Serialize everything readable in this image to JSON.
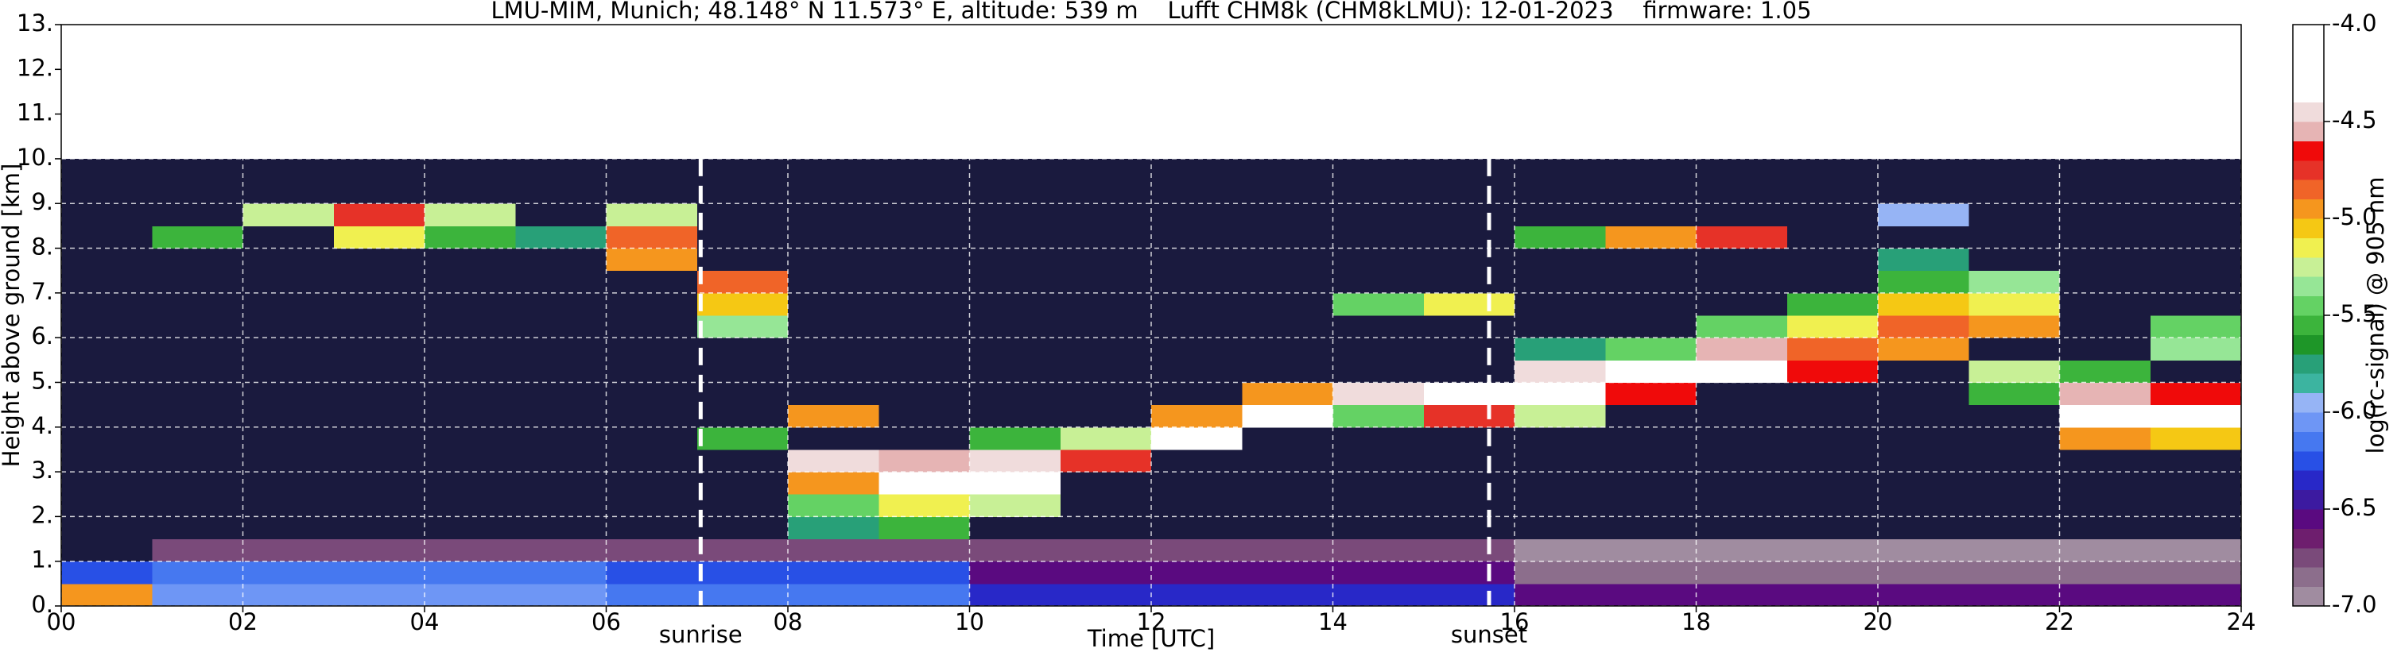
{
  "chart_data": {
    "type": "heatmap",
    "title": "LMU-MIM, Munich; 48.148° N 11.573° E, altitude: 539 m    Lufft CHM8k (CHM8kLMU): 12-01-2023    firmware: 1.05",
    "xlabel": "Time [UTC]",
    "ylabel": "Height above ground [km]",
    "xlim": [
      0,
      24
    ],
    "ylim": [
      0,
      13
    ],
    "xticks": [
      {
        "value": 0,
        "label": "00"
      },
      {
        "value": 2,
        "label": "02"
      },
      {
        "value": 4,
        "label": "04"
      },
      {
        "value": 6,
        "label": "06"
      },
      {
        "value": 8,
        "label": "08"
      },
      {
        "value": 10,
        "label": "10"
      },
      {
        "value": 12,
        "label": "12"
      },
      {
        "value": 14,
        "label": "14"
      },
      {
        "value": 16,
        "label": "16"
      },
      {
        "value": 18,
        "label": "18"
      },
      {
        "value": 20,
        "label": "20"
      },
      {
        "value": 22,
        "label": "22"
      },
      {
        "value": 24,
        "label": "24"
      }
    ],
    "yticks": [
      {
        "value": 0,
        "label": "0."
      },
      {
        "value": 1,
        "label": "1."
      },
      {
        "value": 2,
        "label": "2."
      },
      {
        "value": 3,
        "label": "3."
      },
      {
        "value": 4,
        "label": "4."
      },
      {
        "value": 5,
        "label": "5."
      },
      {
        "value": 6,
        "label": "6."
      },
      {
        "value": 7,
        "label": "7."
      },
      {
        "value": 8,
        "label": "8."
      },
      {
        "value": 9,
        "label": "9."
      },
      {
        "value": 10,
        "label": "10."
      },
      {
        "value": 11,
        "label": "11."
      },
      {
        "value": 12,
        "label": "12."
      },
      {
        "value": 13,
        "label": "13."
      }
    ],
    "grid": true,
    "grid_color": "#ffffff",
    "xbins": [
      0,
      1,
      2,
      3,
      4,
      5,
      6,
      7,
      8,
      9,
      10,
      11,
      12,
      13,
      14,
      15,
      16,
      17,
      18,
      19,
      20,
      21,
      22,
      23,
      24
    ],
    "ybins": [
      0,
      0.5,
      1,
      1.5,
      2,
      2.5,
      3,
      3.5,
      4,
      4.5,
      5,
      5.5,
      6,
      6.5,
      7,
      7.5,
      8,
      8.5,
      9,
      9.5,
      10
    ],
    "values": [
      [
        -5.0,
        -6.1,
        -6.1,
        -6.1,
        -6.1,
        -6.1,
        -6.2,
        -6.2,
        -6.2,
        -6.2,
        -6.4,
        -6.4,
        -6.4,
        -6.4,
        -6.4,
        -6.4,
        -6.6,
        -6.6,
        -6.6,
        -6.6,
        -6.6,
        -6.6,
        -6.6,
        -6.6
      ],
      [
        -6.3,
        -6.2,
        -6.2,
        -6.2,
        -6.2,
        -6.2,
        -6.3,
        -6.3,
        -6.3,
        -6.3,
        -6.6,
        -6.6,
        -6.6,
        -6.6,
        -6.6,
        -6.6,
        -6.9,
        -6.9,
        -6.9,
        -6.9,
        -6.9,
        -6.9,
        -6.9,
        -6.9
      ],
      [
        -7.2,
        -6.8,
        -6.8,
        -6.8,
        -6.8,
        -6.8,
        -6.8,
        -6.8,
        -6.8,
        -6.8,
        -6.8,
        -6.8,
        -6.8,
        -6.8,
        -6.8,
        -6.8,
        -7.0,
        -7.0,
        -7.0,
        -7.0,
        -7.0,
        -7.0,
        -7.0,
        -7.0
      ],
      [
        -7.2,
        -7.2,
        -7.2,
        -7.2,
        -7.2,
        -7.2,
        -7.2,
        -7.2,
        -5.8,
        -5.6,
        -7.2,
        -7.2,
        -7.2,
        -7.2,
        -7.2,
        -7.2,
        -7.2,
        -7.2,
        -7.2,
        -7.2,
        -7.2,
        -7.2,
        -7.2,
        -7.2
      ],
      [
        -7.2,
        -7.2,
        -7.2,
        -7.2,
        -7.2,
        -7.2,
        -7.2,
        -7.2,
        -5.5,
        -5.2,
        -5.3,
        -7.2,
        -7.2,
        -7.2,
        -7.2,
        -7.2,
        -7.2,
        -7.2,
        -7.2,
        -7.2,
        -7.2,
        -7.2,
        -7.2,
        -7.2
      ],
      [
        -7.2,
        -7.2,
        -7.2,
        -7.2,
        -7.2,
        -7.2,
        -7.2,
        -7.2,
        -5.0,
        -4.3,
        -4.4,
        -7.2,
        -7.2,
        -7.2,
        -7.2,
        -7.2,
        -7.2,
        -7.2,
        -7.2,
        -7.2,
        -7.2,
        -7.2,
        -7.2,
        -7.2
      ],
      [
        -7.2,
        -7.2,
        -7.2,
        -7.2,
        -7.2,
        -7.2,
        -7.2,
        -7.2,
        -4.5,
        -4.6,
        -4.5,
        -4.8,
        -7.2,
        -7.2,
        -7.2,
        -7.2,
        -7.2,
        -7.2,
        -7.2,
        -7.2,
        -7.2,
        -7.2,
        -7.2,
        -7.2
      ],
      [
        -7.2,
        -7.2,
        -7.2,
        -7.2,
        -7.2,
        -7.2,
        -7.2,
        -5.6,
        -7.2,
        -7.2,
        -5.6,
        -5.3,
        -4.4,
        -7.2,
        -7.2,
        -7.2,
        -7.2,
        -7.2,
        -7.2,
        -7.2,
        -7.2,
        -7.2,
        -5.0,
        -5.1
      ],
      [
        -7.2,
        -7.2,
        -7.2,
        -7.2,
        -7.2,
        -7.2,
        -7.2,
        -7.2,
        -5.0,
        -7.2,
        -7.2,
        -7.2,
        -5.0,
        -4.3,
        -5.5,
        -4.8,
        -5.3,
        -7.2,
        -7.2,
        -7.2,
        -7.2,
        -7.2,
        -4.2,
        -4.3
      ],
      [
        -7.2,
        -7.2,
        -7.2,
        -7.2,
        -7.2,
        -7.2,
        -7.2,
        -7.2,
        -7.2,
        -7.2,
        -7.2,
        -7.2,
        -7.2,
        -5.0,
        -4.5,
        -4.4,
        -4.2,
        -4.7,
        -7.2,
        -7.2,
        -7.2,
        -5.6,
        -4.6,
        -4.7
      ],
      [
        -7.2,
        -7.2,
        -7.2,
        -7.2,
        -7.2,
        -7.2,
        -7.2,
        -7.2,
        -7.2,
        -7.2,
        -7.2,
        -7.2,
        -7.2,
        -7.2,
        -7.2,
        -7.2,
        -4.5,
        -4.3,
        -4.4,
        -4.7,
        -7.2,
        -5.3,
        -5.6,
        -7.2
      ],
      [
        -7.2,
        -7.2,
        -7.2,
        -7.2,
        -7.2,
        -7.2,
        -7.2,
        -7.2,
        -7.2,
        -7.2,
        -7.2,
        -7.2,
        -7.2,
        -7.2,
        -7.2,
        -7.2,
        -5.8,
        -5.5,
        -4.6,
        -4.9,
        -5.0,
        -7.2,
        -7.2,
        -5.4
      ],
      [
        -7.2,
        -7.2,
        -7.2,
        -7.2,
        -7.2,
        -7.2,
        -7.2,
        -5.4,
        -7.2,
        -7.2,
        -7.2,
        -7.2,
        -7.2,
        -7.2,
        -7.2,
        -7.2,
        -7.2,
        -7.2,
        -5.5,
        -5.2,
        -4.9,
        -5.0,
        -7.2,
        -5.5
      ],
      [
        -7.2,
        -7.2,
        -7.2,
        -7.2,
        -7.2,
        -7.2,
        -7.2,
        -5.1,
        -7.2,
        -7.2,
        -7.2,
        -7.2,
        -7.2,
        -7.2,
        -5.5,
        -5.2,
        -7.2,
        -7.2,
        -7.2,
        -5.6,
        -5.1,
        -5.2,
        -7.2,
        -7.2
      ],
      [
        -7.2,
        -7.2,
        -7.2,
        -7.2,
        -7.2,
        -7.2,
        -7.2,
        -4.9,
        -7.2,
        -7.2,
        -7.2,
        -7.2,
        -7.2,
        -7.2,
        -7.2,
        -7.2,
        -7.2,
        -7.2,
        -7.2,
        -7.2,
        -5.6,
        -5.4,
        -7.2,
        -7.2
      ],
      [
        -7.2,
        -7.2,
        -7.2,
        -7.2,
        -7.2,
        -7.2,
        -5.0,
        -7.2,
        -7.2,
        -7.2,
        -7.2,
        -7.2,
        -7.2,
        -7.2,
        -7.2,
        -7.2,
        -7.2,
        -7.2,
        -7.2,
        -7.2,
        -5.8,
        -7.2,
        -7.2,
        -7.2
      ],
      [
        -7.2,
        -5.6,
        -7.2,
        -5.2,
        -5.6,
        -5.8,
        -4.9,
        -7.2,
        -7.2,
        -7.2,
        -7.2,
        -7.2,
        -7.2,
        -7.2,
        -7.2,
        -7.2,
        -5.6,
        -5.0,
        -4.8,
        -7.2,
        -7.2,
        -7.2,
        -7.2,
        -7.2
      ],
      [
        -7.2,
        -7.2,
        -5.3,
        -4.8,
        -5.3,
        -7.2,
        -5.3,
        -7.2,
        -7.2,
        -7.2,
        -7.2,
        -7.2,
        -7.2,
        -7.2,
        -7.2,
        -7.2,
        -7.2,
        -7.2,
        -7.2,
        -7.2,
        -6.0,
        -7.2,
        -7.2,
        -7.2
      ],
      [
        -7.2,
        -7.2,
        -7.2,
        -7.2,
        -7.2,
        -7.2,
        -7.2,
        -7.2,
        -7.2,
        -7.2,
        -7.2,
        -7.2,
        -7.2,
        -7.2,
        -7.2,
        -7.2,
        -7.2,
        -7.2,
        -7.2,
        -7.2,
        -7.2,
        -7.2,
        -7.2,
        -7.2
      ],
      [
        -7.2,
        -7.2,
        -7.2,
        -7.2,
        -7.2,
        -7.2,
        -7.2,
        -7.2,
        -7.2,
        -7.2,
        -7.2,
        -7.2,
        -7.2,
        -7.2,
        -7.2,
        -7.2,
        -7.2,
        -7.2,
        -7.2,
        -7.2,
        -7.2,
        -7.2,
        -7.2,
        -7.2
      ]
    ],
    "annotations": [
      {
        "x": 7.04,
        "label": "sunrise"
      },
      {
        "x": 15.72,
        "label": "sunset"
      }
    ],
    "colorbar": {
      "label": "log(rc-signal) @ 905 nm",
      "under_color": "#1a1a3e",
      "bounds": [
        -7.0,
        -6.9,
        -6.8,
        -6.7,
        -6.6,
        -6.5,
        -6.4,
        -6.3,
        -6.2,
        -6.1,
        -6.0,
        -5.9,
        -5.8,
        -5.7,
        -5.6,
        -5.5,
        -5.4,
        -5.3,
        -5.2,
        -5.1,
        -5.0,
        -4.9,
        -4.8,
        -4.7,
        -4.6,
        -4.5,
        -4.4,
        -4.3,
        -4.2,
        -4.1,
        -4.0
      ],
      "colors": [
        "#a08ca0",
        "#8c6e8c",
        "#7a4a7a",
        "#6e1e6e",
        "#5a0a80",
        "#3c1aa0",
        "#2828c8",
        "#2850e6",
        "#4678f0",
        "#6e96f5",
        "#96b4f5",
        "#3cb4a0",
        "#28a078",
        "#1e9628",
        "#3cb43c",
        "#64d264",
        "#96e696",
        "#c8f096",
        "#f0f050",
        "#f5c814",
        "#f5961e",
        "#f06428",
        "#e63228",
        "#f00a0a",
        "#e6b4b4",
        "#f0dcdc",
        "#ffffff",
        "#ffffff",
        "#ffffff",
        "#ffffff"
      ],
      "ticks": [
        {
          "value": -7.0,
          "label": "-7.0"
        },
        {
          "value": -6.5,
          "label": "-6.5"
        },
        {
          "value": -6.0,
          "label": "-6.0"
        },
        {
          "value": -5.5,
          "label": "-5.5"
        },
        {
          "value": -5.0,
          "label": "-5.0"
        },
        {
          "value": -4.5,
          "label": "-4.5"
        },
        {
          "value": -4.0,
          "label": "-4.0"
        }
      ]
    }
  }
}
